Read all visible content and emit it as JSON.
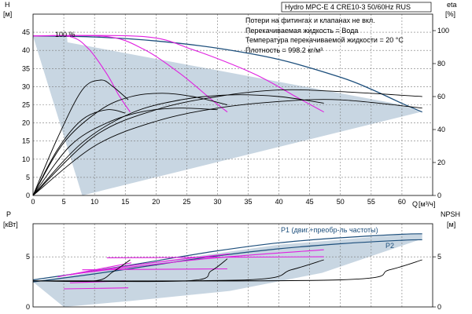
{
  "chart_data": [
    {
      "id": "head",
      "type": "line",
      "title": "Hydro MPC-E 4 CRE10-3 50/60Hz RUS",
      "notes": [
        "Потери на фитингах и клапанах не вкл.",
        "Перекачиваемая жидкость = Вода",
        "Температура перекачиваемой жидкости = 20 °C",
        "Плотность = 998.2 кг/м³"
      ],
      "ylabel_left": "H",
      "yunit_left": "[м]",
      "ylabel_right": "eta",
      "yunit_right": "[%]",
      "xlabel": "Q",
      "xunit": "[м³/ч]",
      "xlim": [
        0,
        65
      ],
      "ylim": [
        0,
        50
      ],
      "y2lim": [
        0,
        110
      ],
      "xticks": [
        0,
        5,
        10,
        15,
        20,
        25,
        30,
        35,
        40,
        45,
        50,
        55,
        60
      ],
      "yticks": [
        0,
        5,
        10,
        15,
        20,
        25,
        30,
        35,
        40,
        45
      ],
      "y2ticks": [
        0,
        20,
        40,
        60,
        80,
        100
      ],
      "speed_label": "100 %",
      "colors": {
        "envelope": "#c8d6e2",
        "max_curve": "#1d4f7c",
        "system": "#e020e0",
        "eta": "#000000"
      },
      "envelope": [
        [
          0,
          44
        ],
        [
          5.5,
          44
        ],
        [
          8,
          0
        ]
      ],
      "envelope2": [
        [
          0,
          44
        ],
        [
          60,
          25
        ],
        [
          63,
          23
        ],
        [
          8,
          0
        ]
      ],
      "series": [
        {
          "role": "max_curve",
          "x": [
            0,
            10,
            20,
            30,
            40,
            50,
            55,
            60,
            63.3
          ],
          "y": [
            44,
            43.7,
            42.6,
            40.6,
            37.5,
            32.6,
            29.3,
            25.4,
            23
          ]
        },
        {
          "role": "system",
          "x": [
            0,
            6,
            9,
            12,
            14,
            15.8
          ],
          "y": [
            44,
            43.8,
            40.5,
            33.5,
            27.5,
            23
          ]
        },
        {
          "role": "system",
          "x": [
            0,
            12,
            18,
            24,
            29,
            31.6
          ],
          "y": [
            44,
            43.8,
            40.3,
            33.5,
            26.5,
            23
          ]
        },
        {
          "role": "system",
          "x": [
            0,
            18,
            26,
            36,
            43,
            47.3
          ],
          "y": [
            44,
            43.8,
            40.2,
            33.5,
            27,
            23
          ]
        },
        {
          "role": "eta",
          "x": [
            0,
            4,
            8,
            11,
            13,
            15.5
          ],
          "y2": [
            0,
            35,
            64,
            70,
            66,
            58
          ]
        },
        {
          "role": "eta",
          "x": [
            0,
            5,
            11,
            16,
            21,
            26,
            31.6
          ],
          "y2": [
            0,
            32,
            52,
            60,
            62,
            60,
            55
          ]
        },
        {
          "role": "eta",
          "x": [
            0,
            8,
            16,
            24,
            32,
            40,
            47.3
          ],
          "y2": [
            0,
            32,
            50,
            58,
            61,
            60,
            56
          ]
        },
        {
          "role": "eta",
          "x": [
            0,
            10,
            20,
            30,
            40,
            50,
            63.3
          ],
          "y2": [
            0,
            36,
            52,
            60,
            64,
            63,
            60
          ]
        },
        {
          "role": "eta",
          "x": [
            0,
            10,
            20,
            30,
            40,
            50,
            63.3
          ],
          "y2": [
            0,
            30,
            45,
            53,
            57,
            58,
            53
          ]
        },
        {
          "role": "eta",
          "x": [
            0,
            4,
            8,
            12,
            15
          ],
          "y2": [
            0,
            28,
            46,
            52,
            50
          ]
        },
        {
          "role": "eta",
          "x": [
            0,
            6,
            12,
            18,
            24,
            30
          ],
          "y2": [
            0,
            30,
            44,
            51,
            53,
            52
          ]
        }
      ]
    },
    {
      "id": "power",
      "type": "line",
      "ylabel_left": "P",
      "yunit_left": "[кВт]",
      "ylabel_right": "NPSH",
      "yunit_right": "[м]",
      "xlim": [
        0,
        65
      ],
      "ylim": [
        0,
        8.3
      ],
      "y2lim": [
        0,
        8.3
      ],
      "yticks": [
        0,
        5
      ],
      "y2ticks": [
        0,
        5
      ],
      "labels": {
        "p1": "P1 (двиг.+преобр-ль частоты)",
        "p2": "P2"
      },
      "colors": {
        "envelope": "#c8d6e2",
        "p1": "#1d4f7c",
        "p2": "#1d4f7c",
        "system": "#e020e0",
        "npsh": "#000000"
      },
      "envelope": [
        [
          0,
          2.5
        ],
        [
          20,
          4.5
        ],
        [
          40,
          6.2
        ],
        [
          60,
          7.2
        ],
        [
          63.3,
          7.3
        ],
        [
          63.3,
          6.8
        ],
        [
          47,
          3.4
        ],
        [
          32,
          1.6
        ],
        [
          16,
          0.6
        ],
        [
          5,
          0
        ]
      ],
      "series": [
        {
          "role": "p1",
          "x": [
            0,
            10,
            20,
            30,
            40,
            50,
            60,
            63.3
          ],
          "y": [
            2.7,
            3.6,
            4.6,
            5.6,
            6.4,
            6.9,
            7.25,
            7.3
          ]
        },
        {
          "role": "p2",
          "x": [
            0,
            10,
            20,
            30,
            40,
            50,
            60,
            63.3
          ],
          "y": [
            2.5,
            3.3,
            4.2,
            5.1,
            5.8,
            6.3,
            6.65,
            6.7
          ]
        },
        {
          "role": "system",
          "x": [
            4,
            16
          ],
          "y": [
            3.0,
            4.4
          ]
        },
        {
          "role": "system",
          "x": [
            6,
            18,
            32
          ],
          "y": [
            3.2,
            4.3,
            5.3
          ]
        },
        {
          "role": "system",
          "x": [
            8,
            28,
            47.3
          ],
          "y": [
            3.4,
            4.8,
            5.7
          ]
        },
        {
          "role": "system",
          "x": [
            5,
            15.5
          ],
          "y": [
            1.8,
            1.9
          ]
        },
        {
          "role": "system",
          "x": [
            8,
            31.6
          ],
          "y": [
            3.7,
            3.8
          ]
        },
        {
          "role": "system",
          "x": [
            12,
            47.3
          ],
          "y": [
            4.9,
            5.0
          ]
        },
        {
          "role": "system",
          "x": [
            6,
            15
          ],
          "y": [
            2.4,
            2.6
          ]
        },
        {
          "role": "npsh",
          "x": [
            0,
            10,
            13,
            15.8
          ],
          "y2": [
            2.6,
            2.6,
            3.5,
            4.7
          ]
        },
        {
          "role": "npsh",
          "x": [
            0,
            25,
            29,
            31.6
          ],
          "y2": [
            2.6,
            2.6,
            3.6,
            4.8
          ]
        },
        {
          "role": "npsh",
          "x": [
            0,
            35,
            42,
            47.3
          ],
          "y2": [
            2.6,
            2.7,
            3.7,
            4.7
          ]
        },
        {
          "role": "npsh",
          "x": [
            0,
            50,
            58,
            63.3
          ],
          "y2": [
            2.6,
            2.7,
            3.7,
            4.7
          ]
        }
      ]
    }
  ]
}
